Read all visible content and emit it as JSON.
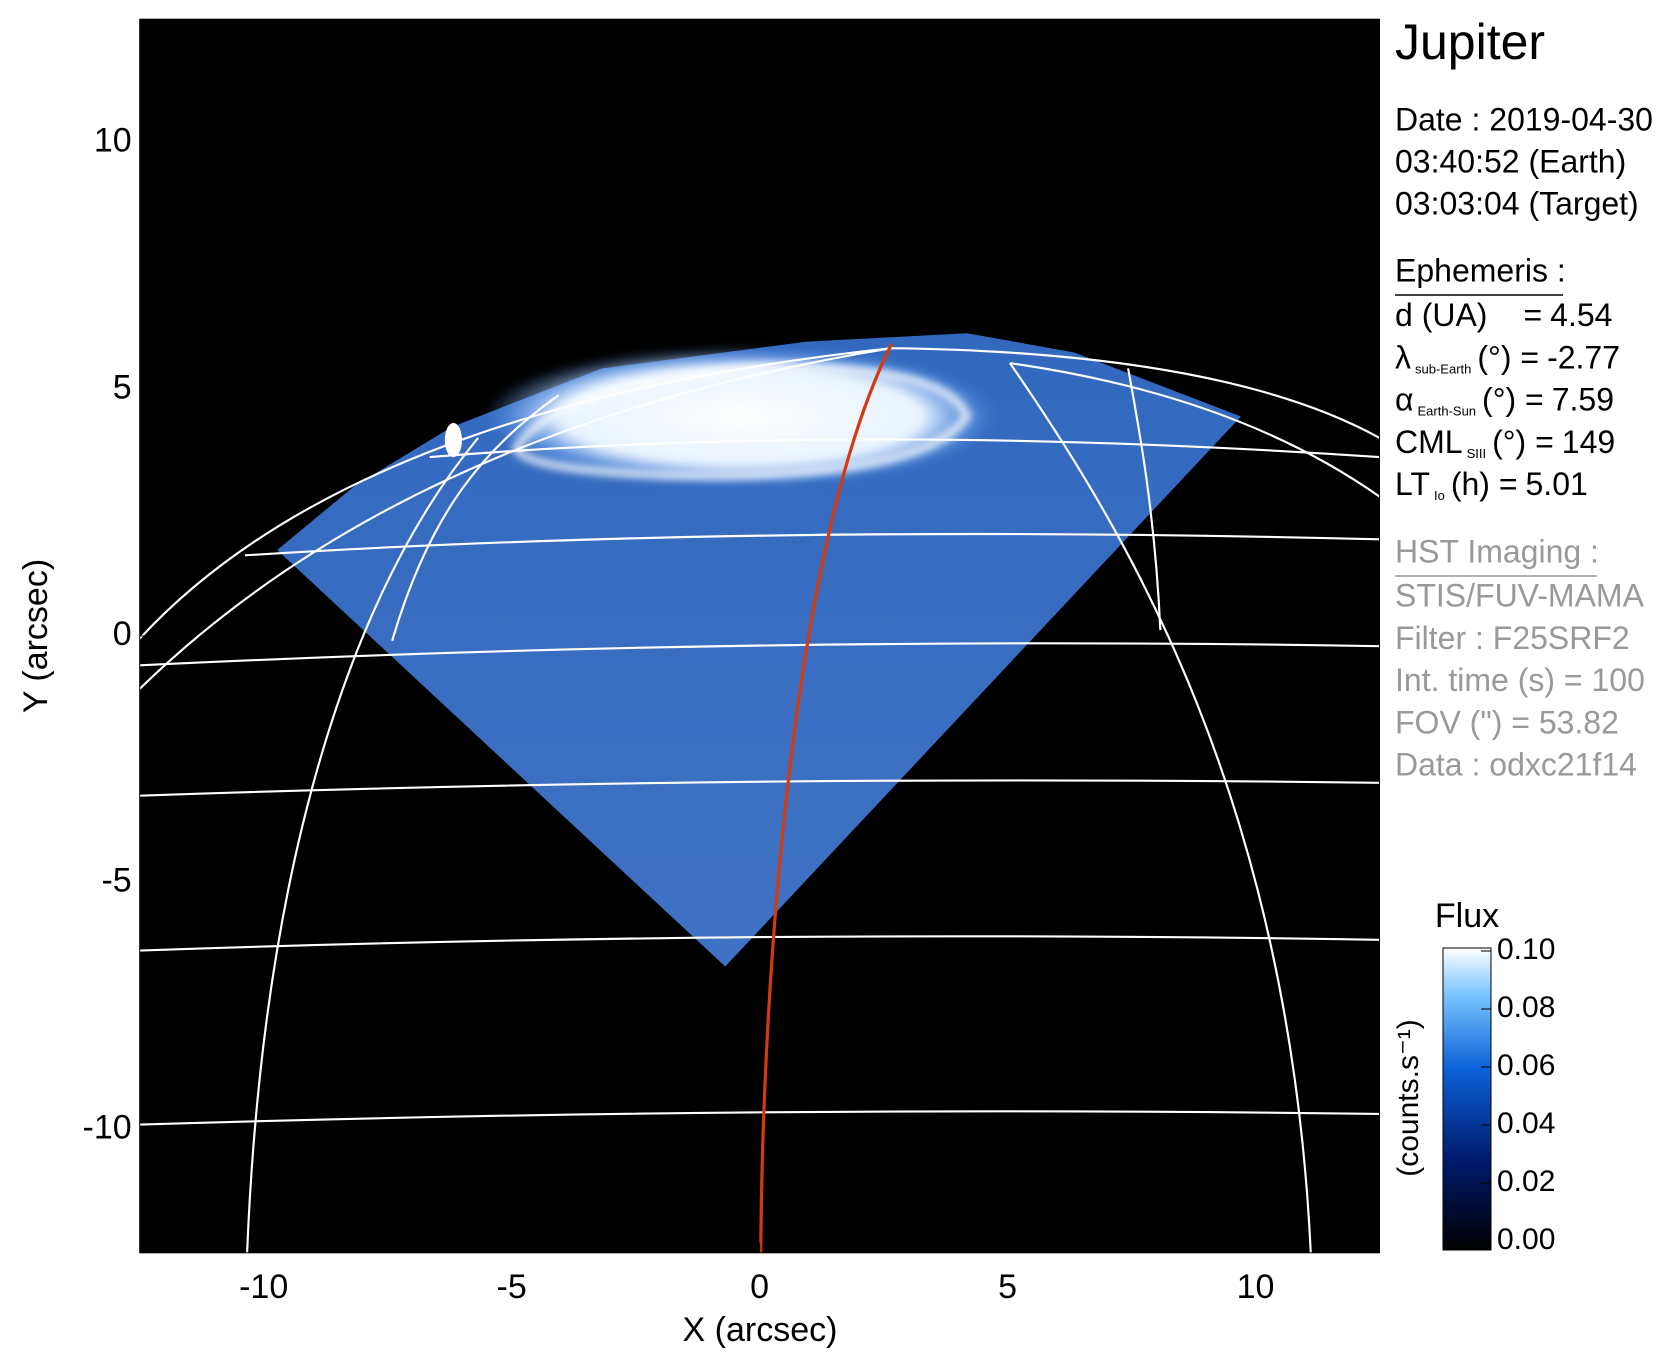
{
  "chart_data": {
    "type": "image",
    "xlabel": "X (arcsec)",
    "ylabel": "Y (arcsec)",
    "xlim": [
      -12.5,
      12.5
    ],
    "ylim": [
      -12.5,
      12.5
    ],
    "xticks": [
      -10,
      -5,
      0,
      5,
      10
    ],
    "yticks": [
      -10,
      -5,
      0,
      5,
      10
    ],
    "colorbar": {
      "title": "Flux",
      "label": "(counts.s⁻¹)",
      "lim": [
        0,
        0.1
      ],
      "ticks": [
        {
          "value": 0,
          "label": "0.00"
        },
        0.02,
        0.04,
        0.06,
        0.08,
        {
          "value": 0.1,
          "label": "0.10"
        }
      ]
    }
  },
  "panel": {
    "title": "Jupiter",
    "date": [
      "Date : 2019-04-30",
      "03:40:52 (Earth)",
      "03:03:04 (Target)"
    ],
    "ephemeris": {
      "heading": "Ephemeris :",
      "rows": [
        {
          "text": "d (UA)",
          "rest": "=",
          "value": 4.54
        },
        {
          "text": "λ",
          "sub": "sub-Earth",
          "rest": "(°) =",
          "value": -2.77
        },
        {
          "text": "α",
          "sub": "Earth-Sun",
          "rest": "(°) =",
          "value": 7.59
        },
        {
          "text": "CML",
          "sub": "SIII",
          "rest": "(°) =",
          "value": 149
        },
        {
          "text": "LT",
          "sub": "Io",
          "rest": "(h) =",
          "value": 5.01
        }
      ]
    },
    "hst": {
      "heading": "HST Imaging :",
      "lines": [
        "STIS/FUV-MAMA",
        "Filter : F25SRF2",
        "Int. time (s) = 100",
        "FOV (\") = 53.82",
        "Data : odxc21f14"
      ]
    }
  }
}
